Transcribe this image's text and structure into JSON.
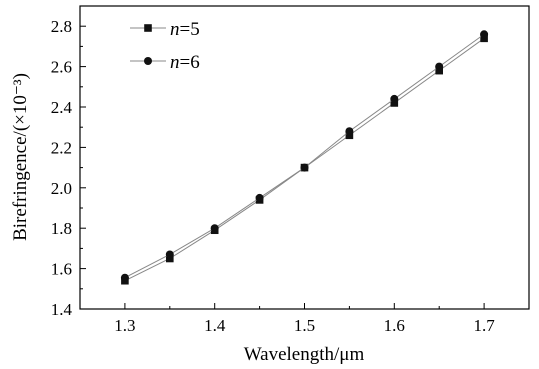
{
  "chart_data": {
    "type": "line",
    "title": "",
    "xlabel": "Wavelength/μm",
    "ylabel": "Birefringence/(×10⁻³)",
    "xlim": [
      1.25,
      1.75
    ],
    "ylim": [
      1.4,
      2.9
    ],
    "x_ticks": [
      "1.3",
      "1.4",
      "1.5",
      "1.6",
      "1.7"
    ],
    "y_ticks": [
      "1.4",
      "1.6",
      "1.8",
      "2.0",
      "2.2",
      "2.4",
      "2.6",
      "2.8"
    ],
    "x": [
      1.3,
      1.35,
      1.4,
      1.45,
      1.5,
      1.55,
      1.6,
      1.65,
      1.7
    ],
    "series": [
      {
        "name_var": "n",
        "name_val": "=5",
        "marker": "square",
        "values": [
          1.54,
          1.65,
          1.79,
          1.94,
          2.1,
          2.26,
          2.42,
          2.58,
          2.74
        ]
      },
      {
        "name_var": "n",
        "name_val": "=6",
        "marker": "circle",
        "values": [
          1.555,
          1.67,
          1.8,
          1.95,
          2.1,
          2.28,
          2.44,
          2.6,
          2.76
        ]
      }
    ],
    "grid": false,
    "legend_position": "top-left",
    "line_color": "#888888",
    "marker_color": "#111111"
  }
}
